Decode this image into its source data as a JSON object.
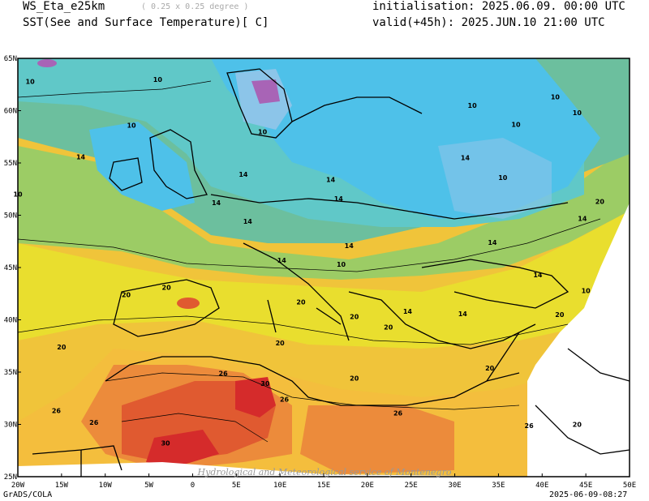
{
  "header": {
    "model": "WS_Eta_e25km",
    "resolution": "( 0.25 x 0.25 degree )",
    "variable": "SST(See and Surface Temperature)[ C]",
    "init": "initialisation: 2025.06.09. 00:00 UTC",
    "valid": "valid(+45h): 2025.JUN.10 21:00 UTC"
  },
  "axes": {
    "lat_labels": [
      "65N",
      "60N",
      "55N",
      "50N",
      "45N",
      "40N",
      "35N",
      "30N",
      "25N"
    ],
    "lon_labels": [
      "20W",
      "15W",
      "10W",
      "5W",
      "0",
      "5E",
      "10E",
      "15E",
      "20E",
      "25E",
      "30E",
      "35E",
      "40E",
      "45E",
      "50E"
    ]
  },
  "contour_labels": [
    {
      "text": "10",
      "lon": -18.6,
      "lat": 62.8
    },
    {
      "text": "10",
      "lon": -20,
      "lat": 52
    },
    {
      "text": "10",
      "lon": -4,
      "lat": 63
    },
    {
      "text": "10",
      "lon": -7,
      "lat": 58.6
    },
    {
      "text": "10",
      "lon": 8,
      "lat": 58
    },
    {
      "text": "10",
      "lon": 41.5,
      "lat": 61.3
    },
    {
      "text": "10",
      "lon": 32,
      "lat": 60.5
    },
    {
      "text": "10",
      "lon": 37,
      "lat": 58.7
    },
    {
      "text": "10",
      "lon": 44,
      "lat": 59.8
    },
    {
      "text": "10",
      "lon": 35.5,
      "lat": 53.6
    },
    {
      "text": "10",
      "lon": 17,
      "lat": 45.3
    },
    {
      "text": "10",
      "lon": 45,
      "lat": 42.8
    },
    {
      "text": "14",
      "lon": -12.8,
      "lat": 55.6
    },
    {
      "text": "14",
      "lon": 5.8,
      "lat": 53.9
    },
    {
      "text": "14",
      "lon": 2.7,
      "lat": 51.2
    },
    {
      "text": "14",
      "lon": 6.3,
      "lat": 49.4
    },
    {
      "text": "14",
      "lon": 15.8,
      "lat": 53.4
    },
    {
      "text": "14",
      "lon": 16.7,
      "lat": 51.6
    },
    {
      "text": "14",
      "lon": 31.2,
      "lat": 55.5
    },
    {
      "text": "14",
      "lon": 44.6,
      "lat": 49.7
    },
    {
      "text": "14",
      "lon": 34.3,
      "lat": 47.4
    },
    {
      "text": "14",
      "lon": 17.9,
      "lat": 47.1
    },
    {
      "text": "14",
      "lon": 10.2,
      "lat": 45.7
    },
    {
      "text": "14",
      "lon": 39.5,
      "lat": 44.3
    },
    {
      "text": "14",
      "lon": 30.9,
      "lat": 40.6
    },
    {
      "text": "14",
      "lon": 24.6,
      "lat": 40.8
    },
    {
      "text": "20",
      "lon": -3,
      "lat": 43.1
    },
    {
      "text": "20",
      "lon": -7.6,
      "lat": 42.4
    },
    {
      "text": "20",
      "lon": 12.4,
      "lat": 41.7
    },
    {
      "text": "20",
      "lon": 18.5,
      "lat": 40.3
    },
    {
      "text": "20",
      "lon": 22.4,
      "lat": 39.3
    },
    {
      "text": "20",
      "lon": 10,
      "lat": 37.8
    },
    {
      "text": "20",
      "lon": -15,
      "lat": 37.4
    },
    {
      "text": "20",
      "lon": 42,
      "lat": 40.5
    },
    {
      "text": "20",
      "lon": 34,
      "lat": 35.4
    },
    {
      "text": "20",
      "lon": 46.6,
      "lat": 51.3
    },
    {
      "text": "20",
      "lon": 18.5,
      "lat": 34.4
    },
    {
      "text": "20",
      "lon": 44,
      "lat": 30
    },
    {
      "text": "26",
      "lon": 3.5,
      "lat": 34.9
    },
    {
      "text": "26",
      "lon": 10.5,
      "lat": 32.4
    },
    {
      "text": "26",
      "lon": -15.6,
      "lat": 31.3
    },
    {
      "text": "26",
      "lon": -11.3,
      "lat": 30.2
    },
    {
      "text": "26",
      "lon": 23.5,
      "lat": 31.1
    },
    {
      "text": "26",
      "lon": 38.5,
      "lat": 29.9
    },
    {
      "text": "30",
      "lon": 8.3,
      "lat": 33.9
    },
    {
      "text": "30",
      "lon": -3.1,
      "lat": 28.2
    }
  ],
  "watermark": "Hydrological and Meteorological service of Montenegro",
  "footer": {
    "left": "GrADS/COLA",
    "right": "2025-06-09-08:27"
  },
  "colors": {
    "cold": "#8cc5e9",
    "cool": "#4ec1e9",
    "mid_cool": "#60c8c8",
    "mild": "#6cbf9e",
    "green": "#9ccc65",
    "warm": "#e9de2e",
    "warmer": "#f4be3d",
    "hot": "#ec8b3b",
    "hotter": "#e05a30",
    "hottest": "#d52b2b",
    "violet": "#a864b6"
  }
}
